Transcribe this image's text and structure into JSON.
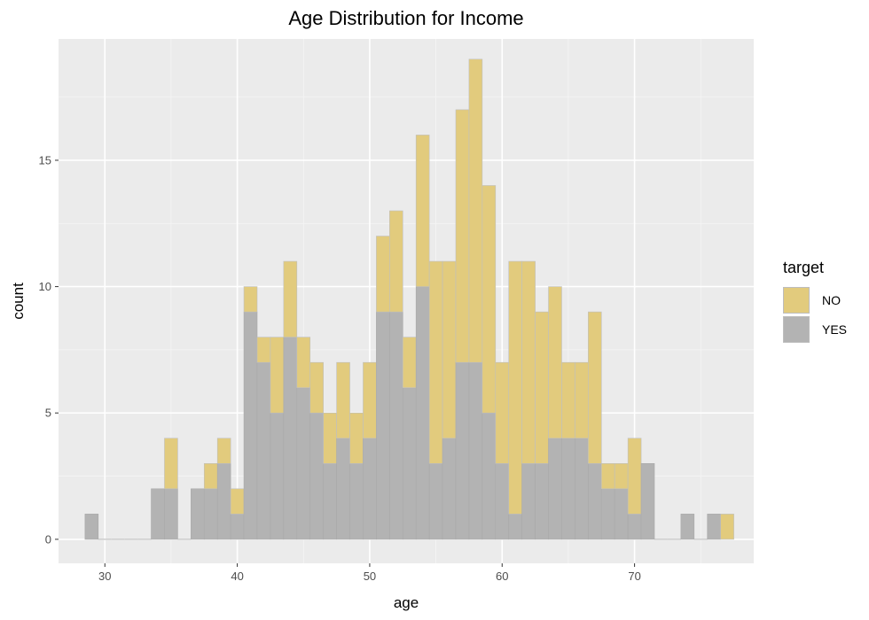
{
  "title": "Age Distribution for Income",
  "legend": {
    "title": "target",
    "items": [
      {
        "label": "NO",
        "color": "#e2cb7d"
      },
      {
        "label": "YES",
        "color": "#b3b3b3"
      }
    ]
  },
  "chart_data": {
    "type": "bar",
    "subtype": "stacked-histogram",
    "title": "Age Distribution for Income",
    "xlabel": "age",
    "ylabel": "count",
    "xlim": [
      26.5,
      79
    ],
    "ylim": [
      -0.95,
      19.8
    ],
    "bin_width": 1,
    "x_ticks": [
      30,
      40,
      50,
      60,
      70
    ],
    "y_ticks": [
      0,
      5,
      10,
      15
    ],
    "panel_background": "#ebebeb",
    "grid": true,
    "legend_position": "right",
    "categories": [
      29,
      30,
      31,
      32,
      33,
      34,
      35,
      36,
      37,
      38,
      39,
      40,
      41,
      42,
      43,
      44,
      45,
      46,
      47,
      48,
      49,
      50,
      51,
      52,
      53,
      54,
      55,
      56,
      57,
      58,
      59,
      60,
      61,
      62,
      63,
      64,
      65,
      66,
      67,
      68,
      69,
      70,
      71,
      72,
      73,
      74,
      75,
      76,
      77
    ],
    "series": [
      {
        "name": "YES",
        "color": "#b3b3b3",
        "values": [
          1,
          0,
          0,
          0,
          0,
          2,
          2,
          0,
          2,
          2,
          3,
          1,
          9,
          7,
          5,
          8,
          6,
          5,
          3,
          4,
          3,
          4,
          9,
          9,
          6,
          10,
          3,
          4,
          7,
          7,
          5,
          3,
          1,
          3,
          3,
          4,
          4,
          4,
          3,
          2,
          2,
          1,
          3,
          0,
          0,
          1,
          0,
          1,
          0
        ]
      },
      {
        "name": "NO",
        "color": "#e2cb7d",
        "values": [
          0,
          0,
          0,
          0,
          0,
          0,
          2,
          0,
          0,
          1,
          1,
          1,
          1,
          1,
          3,
          3,
          2,
          2,
          2,
          3,
          2,
          3,
          3,
          4,
          2,
          6,
          8,
          7,
          10,
          12,
          9,
          4,
          10,
          8,
          6,
          6,
          3,
          3,
          6,
          1,
          1,
          3,
          0,
          0,
          0,
          0,
          0,
          0,
          1
        ]
      }
    ],
    "totals": [
      1,
      0,
      0,
      0,
      0,
      2,
      4,
      0,
      2,
      3,
      4,
      2,
      10,
      8,
      8,
      11,
      8,
      7,
      5,
      7,
      5,
      7,
      12,
      13,
      8,
      16,
      11,
      11,
      17,
      19,
      14,
      7,
      11,
      11,
      9,
      10,
      7,
      7,
      9,
      3,
      3,
      4,
      3,
      0,
      0,
      1,
      0,
      1,
      1
    ]
  }
}
